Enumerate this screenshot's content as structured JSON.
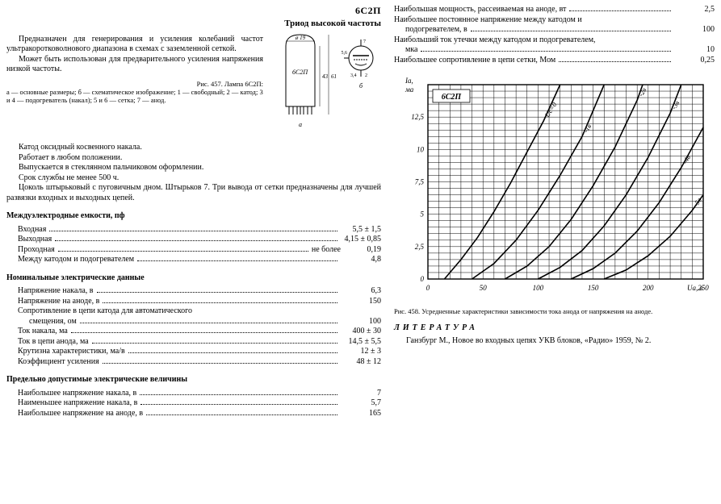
{
  "header": {
    "part": "6С2П",
    "subtitle": "Триод высокой частоты"
  },
  "intro": {
    "p1": "Предназначен для генерирования и усиления колебаний частот ультракоротковолнового диапазона в схемах с заземленной сеткой.",
    "p2": "Может быть использован для предварительного усиления напряжения низкой частоты."
  },
  "fig457": {
    "caption": "Рис. 457. Лампа 6С2П:",
    "legend": "а — основные размеры; б — схематическое изображение; 1 — свободный; 2 — катод; 3 и 4 — подогреватель (накал); 5 и 6 — сетка; 7 — анод.",
    "label_a": "а",
    "label_b": "б",
    "tube_label": "6С2П",
    "dim_d": "ø 19",
    "dim_h1": "43",
    "dim_h2": "61",
    "pin_top": "7",
    "pin_side": "5,6",
    "pin_bot": "3,4",
    "pin_k": "2",
    "pin_free": "1"
  },
  "body": {
    "p1": "Катод оксидный косвенного накала.",
    "p2": "Работает в любом положении.",
    "p3": "Выпускается в стеклянном пальчиковом оформлении.",
    "p4": "Срок службы не менее 500 ч.",
    "p5": "Цоколь штырьковый с пуговичным дном. Штырьков 7. Три вывода от сетки предназначены для лучшей развязки входных и выходных цепей."
  },
  "cap_section": {
    "title": "Междуэлектродные емкости, пф",
    "rows": [
      {
        "label": "Входная",
        "value": "5,5 ± 1,5"
      },
      {
        "label": "Выходная",
        "value": "4,15 ± 0,85"
      },
      {
        "label": "Проходная",
        "prefix": "не более",
        "value": "0,19"
      },
      {
        "label": "Между катодом и подогревателем",
        "value": "4,8"
      }
    ]
  },
  "nominal_section": {
    "title": "Номинальные электрические данные",
    "rows": [
      {
        "label": "Напряжение накала, в",
        "value": "6,3"
      },
      {
        "label": "Напряжение на аноде, в",
        "value": "150"
      },
      {
        "label": "Сопротивление в цепи катода для автоматического",
        "value": ""
      },
      {
        "label": "смещения, ом",
        "indent": true,
        "value": "100"
      },
      {
        "label": "Ток накала, ма",
        "value": "400 ± 30"
      },
      {
        "label": "Ток в цепи анода, ма",
        "value": "14,5 ± 5,5"
      },
      {
        "label": "Крутизна характеристики, ма/в",
        "value": "12 ± 3"
      },
      {
        "label": "Коэффициент усиления",
        "value": "48 ± 12"
      }
    ]
  },
  "limit_section": {
    "title": "Предельно допустимые электрические величины",
    "rows": [
      {
        "label": "Наибольшее напряжение накала, в",
        "value": "7"
      },
      {
        "label": "Наименьшее напряжение накала, в",
        "value": "5,7"
      },
      {
        "label": "Наибольшее напряжение на аноде, в",
        "value": "165"
      }
    ]
  },
  "right_top_rows": [
    {
      "label": "Наибольшая мощность, рассеиваемая на аноде, вт",
      "value": "2,5"
    },
    {
      "label": "Наибольшее постоянное напряжение между катодом и",
      "value": ""
    },
    {
      "label": "подогревателем, в",
      "indent": true,
      "value": "100"
    },
    {
      "label": "Наибольший ток утечки между катодом и подогревателем,",
      "value": ""
    },
    {
      "label": "мка",
      "indent": true,
      "value": "10"
    },
    {
      "label": "Наибольшее сопротивление в цепи сетки, Мом",
      "value": "0,25"
    }
  ],
  "chart": {
    "type": "line",
    "tube_label": "6С2П",
    "y_label": "Iа,\nма",
    "x_label": "Uа, в",
    "xlim": [
      0,
      250
    ],
    "ylim": [
      0,
      15
    ],
    "xtick_step": 50,
    "xticks_labels": [
      "0",
      "50",
      "100",
      "150",
      "200",
      "250"
    ],
    "ytick_step": 2.5,
    "yticks_labels": [
      "0",
      "2,5",
      "5",
      "7,5",
      "10",
      "12,5"
    ],
    "x_minor_count": 5,
    "y_minor_count": 5,
    "background_color": "#ffffff",
    "grid_color": "#000000",
    "curve_color": "#000000",
    "curve_width": 1.6,
    "curves": [
      {
        "label": "Uс=0",
        "points": [
          [
            15,
            0
          ],
          [
            30,
            1.5
          ],
          [
            45,
            3.2
          ],
          [
            60,
            5.2
          ],
          [
            75,
            7.4
          ],
          [
            90,
            9.8
          ],
          [
            105,
            12.2
          ],
          [
            120,
            15
          ]
        ]
      },
      {
        "label": "-1в",
        "points": [
          [
            40,
            0
          ],
          [
            60,
            1.2
          ],
          [
            80,
            3.0
          ],
          [
            100,
            5.3
          ],
          [
            120,
            8.0
          ],
          [
            140,
            11.0
          ],
          [
            160,
            15
          ]
        ]
      },
      {
        "label": "-2в",
        "points": [
          [
            70,
            0
          ],
          [
            90,
            1.0
          ],
          [
            110,
            2.5
          ],
          [
            130,
            4.6
          ],
          [
            150,
            7.2
          ],
          [
            170,
            10.2
          ],
          [
            190,
            13.8
          ],
          [
            195,
            15
          ]
        ]
      },
      {
        "label": "-3в",
        "points": [
          [
            100,
            0
          ],
          [
            120,
            0.9
          ],
          [
            140,
            2.2
          ],
          [
            160,
            4.1
          ],
          [
            180,
            6.5
          ],
          [
            200,
            9.4
          ],
          [
            220,
            12.8
          ],
          [
            230,
            15
          ]
        ]
      },
      {
        "label": "-4в",
        "points": [
          [
            130,
            0
          ],
          [
            150,
            0.8
          ],
          [
            170,
            2.0
          ],
          [
            190,
            3.7
          ],
          [
            210,
            5.9
          ],
          [
            230,
            8.6
          ],
          [
            250,
            11.7
          ]
        ]
      },
      {
        "label": "-5в",
        "points": [
          [
            160,
            0
          ],
          [
            180,
            0.7
          ],
          [
            200,
            1.8
          ],
          [
            220,
            3.3
          ],
          [
            240,
            5.3
          ],
          [
            250,
            6.5
          ]
        ]
      }
    ],
    "caption": "Рис. 458. Усредненные характеристики зависимости тока анода от напряжения на аноде."
  },
  "literature": {
    "title": "ЛИТЕРАТУРА",
    "entry": "Ганзбург М., Новое во входных цепях УКВ блоков, «Радио» 1959, № 2."
  }
}
